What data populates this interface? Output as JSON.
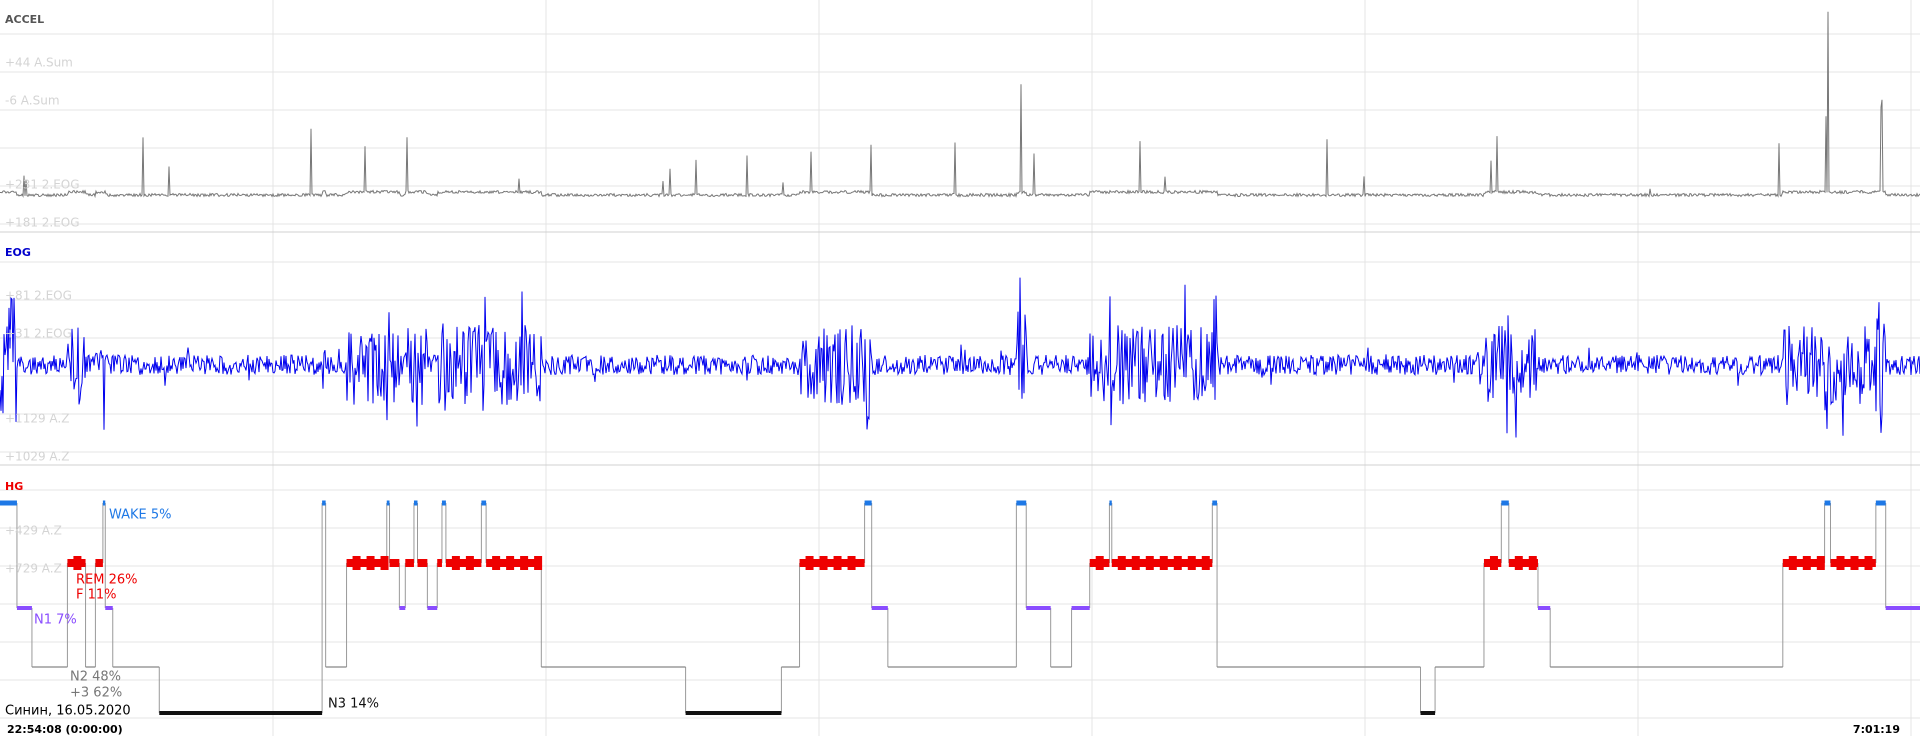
{
  "channels": [
    {
      "name": "ACCEL",
      "scales": [
        "+44 A.Sum",
        "-6 A.Sum",
        "+231 2.EOG",
        "+181 2.EOG"
      ]
    },
    {
      "name": "EOG",
      "scales": [
        "+81 2.EOG",
        "+31 2.EOG",
        "+1129 A.Z",
        "+1029 A.Z"
      ]
    },
    {
      "name": "HG",
      "scales": [
        "+429 A.Z",
        "+729 A.Z"
      ]
    }
  ],
  "hypnogram": {
    "levels": [
      "WAKE",
      "REM",
      "N1",
      "N2",
      "N3"
    ],
    "colors": [
      "#1e78e6",
      "#ee0000",
      "#8a4dff",
      "#888888",
      "#111111"
    ],
    "xlim": [
      0,
      487
    ],
    "stages": [
      0,
      2,
      3,
      1,
      3,
      1,
      0,
      2,
      3,
      4,
      0,
      3,
      1,
      0,
      1,
      2,
      1,
      0,
      1,
      2,
      1,
      0,
      1,
      0,
      1,
      3,
      4,
      3,
      1,
      0,
      2,
      3,
      0,
      2,
      3,
      2,
      1,
      0,
      1,
      0,
      3,
      4,
      3,
      1,
      0,
      1,
      2,
      3,
      1,
      0,
      1,
      0,
      2
    ],
    "bounds": [
      0,
      4.3,
      8.1,
      17.1,
      21.7,
      24.2,
      26.1,
      26.7,
      28.6,
      40.4,
      81.7,
      82.6,
      87.9,
      98.1,
      98.8,
      101.3,
      102.8,
      105.0,
      105.9,
      108.4,
      110.9,
      112.1,
      113.1,
      122.1,
      123.3,
      137.3,
      173.9,
      198.2,
      202.8,
      219.3,
      221.1,
      225.2,
      257.8,
      260.3,
      266.5,
      271.8,
      276.4,
      281.4,
      282.0,
      307.5,
      308.7,
      360.3,
      364.0,
      376.4,
      380.8,
      382.7,
      390.1,
      393.2,
      452.2,
      462.8,
      464.3,
      475.8,
      478.3,
      487
    ]
  },
  "stage_labels": {
    "wake": "WAKE 5%",
    "rem": "REM 26%",
    "f": "F 11%",
    "n1": "N1 7%",
    "n2": "N2 48%",
    "n2b": "+3 62%",
    "n3": "N3 14%"
  },
  "footer": {
    "subject": "Синин, 16.05.2020",
    "start": "22:54:08 (0:00:00)",
    "end": "7:01:19"
  }
}
